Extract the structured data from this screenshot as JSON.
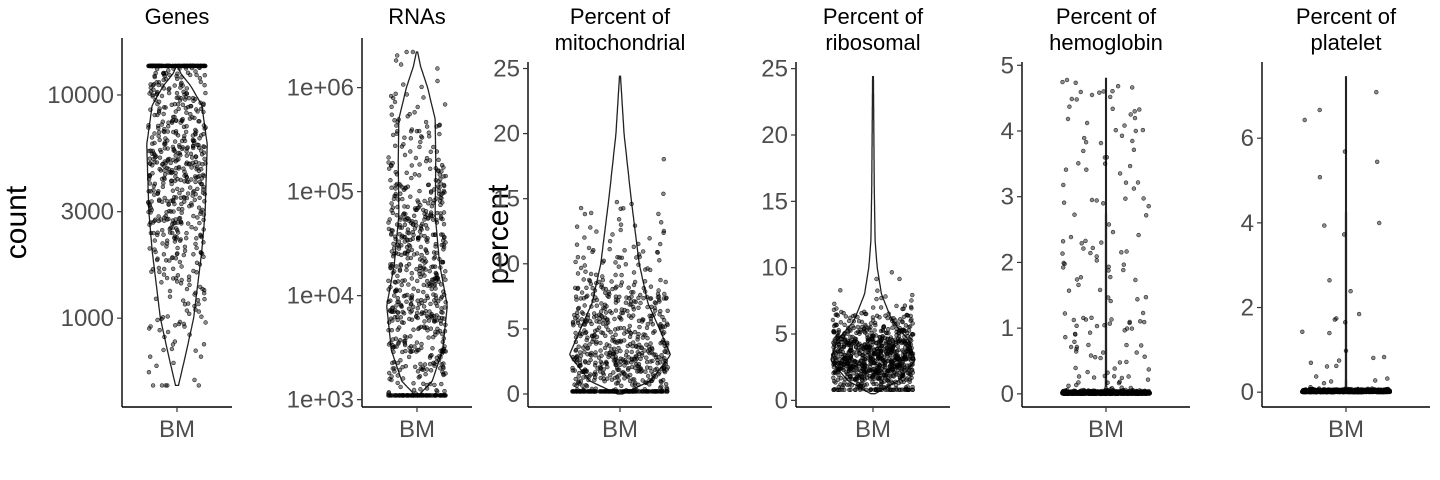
{
  "chart_data": [
    {
      "type": "violin",
      "title": [
        "Genes"
      ],
      "ylabel": "count",
      "scale": "log",
      "categories": [
        "BM"
      ],
      "yticks": [
        1000,
        3000,
        10000
      ],
      "ytick_labels": [
        "1000",
        "3000",
        "10000"
      ],
      "ylim": [
        400,
        18000
      ],
      "data_range": [
        500,
        13500
      ],
      "violin_profile": [
        [
          500,
          0.05
        ],
        [
          700,
          0.3
        ],
        [
          1000,
          0.55
        ],
        [
          2000,
          0.82
        ],
        [
          3000,
          0.93
        ],
        [
          6000,
          1.0
        ],
        [
          9000,
          0.82
        ],
        [
          11000,
          0.45
        ],
        [
          12500,
          0.12
        ],
        [
          13500,
          0.02
        ]
      ],
      "max_width": 0.55,
      "points": {
        "n": 700,
        "min": 500,
        "max": 13500,
        "mode": 6000,
        "spread": 0.45
      }
    },
    {
      "type": "violin",
      "title": [
        "RNAs"
      ],
      "ylabel": "",
      "scale": "log",
      "categories": [
        "BM"
      ],
      "yticks": [
        1000,
        10000,
        100000,
        1000000
      ],
      "ytick_labels": [
        "1e+03",
        "1e+04",
        "1e+05",
        "1e+06"
      ],
      "ylim": [
        850,
        3000000
      ],
      "data_range": [
        1100,
        2200000
      ],
      "violin_profile": [
        [
          1100,
          0.05
        ],
        [
          1500,
          0.5
        ],
        [
          3000,
          0.85
        ],
        [
          8000,
          1.0
        ],
        [
          20000,
          0.75
        ],
        [
          60000,
          0.6
        ],
        [
          200000,
          0.62
        ],
        [
          500000,
          0.6
        ],
        [
          1000000,
          0.35
        ],
        [
          1600000,
          0.12
        ],
        [
          2200000,
          0.02
        ]
      ],
      "max_width": 0.55,
      "points": {
        "n": 700,
        "min": 1100,
        "max": 2200000,
        "mode": 12000,
        "spread": 0.9
      }
    },
    {
      "type": "violin",
      "title": [
        "Percent of",
        "mitochondrial"
      ],
      "ylabel": "percent",
      "scale": "linear",
      "categories": [
        "BM"
      ],
      "yticks": [
        0,
        5,
        10,
        15,
        20,
        25
      ],
      "ytick_labels": [
        "0",
        "5",
        "10",
        "15",
        "20",
        "25"
      ],
      "ylim": [
        -1,
        25.5
      ],
      "data_range": [
        0,
        24.4
      ],
      "violin_profile": [
        [
          0,
          0.05
        ],
        [
          1,
          0.6
        ],
        [
          3,
          1.0
        ],
        [
          5,
          0.78
        ],
        [
          7,
          0.55
        ],
        [
          10,
          0.38
        ],
        [
          15,
          0.22
        ],
        [
          20,
          0.08
        ],
        [
          24.4,
          0.01
        ]
      ],
      "max_width": 0.55,
      "points": {
        "n": 750,
        "min": 0.2,
        "max": 24.4,
        "mode": 3,
        "spread": 4.5
      }
    },
    {
      "type": "violin",
      "title": [
        "Percent of",
        "ribosomal"
      ],
      "ylabel": "",
      "scale": "linear",
      "categories": [
        "BM"
      ],
      "yticks": [
        0,
        5,
        10,
        15,
        20,
        25
      ],
      "ytick_labels": [
        "0",
        "5",
        "10",
        "15",
        "20",
        "25"
      ],
      "ylim": [
        -0.5,
        25.5
      ],
      "data_range": [
        0.5,
        24.4
      ],
      "violin_profile": [
        [
          0.5,
          0.05
        ],
        [
          1.5,
          0.6
        ],
        [
          3,
          1.0
        ],
        [
          4.5,
          0.85
        ],
        [
          6,
          0.45
        ],
        [
          8,
          0.2
        ],
        [
          10,
          0.1
        ],
        [
          12,
          0.05
        ],
        [
          16,
          0.03
        ],
        [
          24.4,
          0.01
        ]
      ],
      "max_width": 0.55,
      "points": {
        "n": 850,
        "min": 0.8,
        "max": 24.4,
        "mode": 3.2,
        "spread": 1.8
      }
    },
    {
      "type": "violin",
      "title": [
        "Percent of",
        "hemoglobin"
      ],
      "ylabel": "",
      "scale": "linear",
      "categories": [
        "BM"
      ],
      "yticks": [
        0,
        1,
        2,
        3,
        4,
        5
      ],
      "ytick_labels": [
        "0",
        "1",
        "2",
        "3",
        "4",
        "5"
      ],
      "ylim": [
        -0.2,
        5.05
      ],
      "data_range": [
        0,
        4.8
      ],
      "violin_profile": [
        [
          0,
          0.6
        ],
        [
          0.02,
          0.06
        ],
        [
          0.1,
          0.012
        ],
        [
          4.8,
          0.008
        ]
      ],
      "max_width": 0.55,
      "points": {
        "n": 900,
        "min": 0,
        "max": 4.8,
        "mode": 0,
        "spread": 0.02,
        "tail_fraction": 0.18
      }
    },
    {
      "type": "violin",
      "title": [
        "Percent of",
        "platelet"
      ],
      "ylabel": "",
      "scale": "linear",
      "categories": [
        "BM"
      ],
      "yticks": [
        0,
        2,
        4,
        6
      ],
      "ytick_labels": [
        "0",
        "2",
        "4",
        "6"
      ],
      "ylim": [
        -0.35,
        7.8
      ],
      "data_range": [
        0,
        7.45
      ],
      "violin_profile": [
        [
          0,
          0.6
        ],
        [
          0.02,
          0.06
        ],
        [
          0.1,
          0.012
        ],
        [
          7.45,
          0.008
        ]
      ],
      "max_width": 0.55,
      "points": {
        "n": 900,
        "min": 0,
        "max": 7.45,
        "mode": 0,
        "spread": 0.03,
        "tail_fraction": 0.03
      }
    }
  ]
}
